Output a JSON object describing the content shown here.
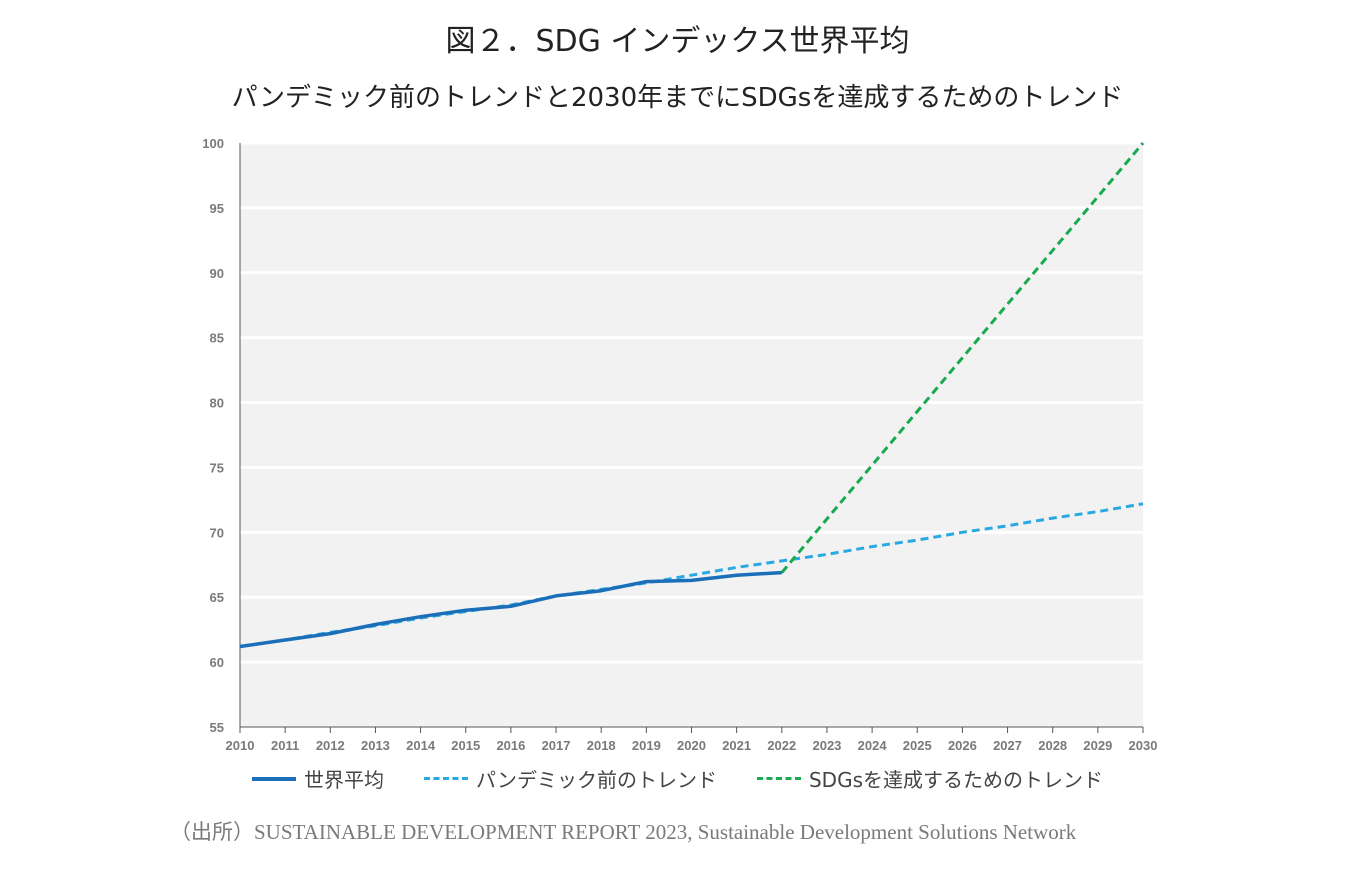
{
  "chart_data": {
    "type": "line",
    "title": "図２．SDG インデックス世界平均",
    "subtitle": "パンデミック前のトレンドと2030年までにSDGsを達成するためのトレンド",
    "xlabel": "",
    "ylabel": "",
    "ylim": [
      55,
      100
    ],
    "y_ticks": [
      "55",
      "60",
      "65",
      "70",
      "75",
      "80",
      "85",
      "90",
      "95",
      "100"
    ],
    "categories": [
      "2010",
      "2011",
      "2012",
      "2013",
      "2014",
      "2015",
      "2016",
      "2017",
      "2018",
      "2019",
      "2020",
      "2021",
      "2022",
      "2023",
      "2024",
      "2025",
      "2026",
      "2027",
      "2028",
      "2029",
      "2030"
    ],
    "grid": "horizontal",
    "legend_position": "bottom",
    "series": [
      {
        "name": "世界平均",
        "color": "#1a6fb8",
        "style": "solid",
        "x": [
          "2010",
          "2011",
          "2012",
          "2013",
          "2014",
          "2015",
          "2016",
          "2017",
          "2018",
          "2019",
          "2020",
          "2021",
          "2022"
        ],
        "values": [
          61.2,
          61.7,
          62.2,
          62.9,
          63.5,
          64.0,
          64.3,
          65.1,
          65.5,
          66.2,
          66.3,
          66.7,
          66.9
        ]
      },
      {
        "name": "パンデミック前のトレンド",
        "color": "#29a9e1",
        "style": "dashed",
        "x": [
          "2010",
          "2011",
          "2012",
          "2013",
          "2014",
          "2015",
          "2016",
          "2017",
          "2018",
          "2019",
          "2020",
          "2021",
          "2022",
          "2023",
          "2024",
          "2025",
          "2026",
          "2027",
          "2028",
          "2029",
          "2030"
        ],
        "values": [
          61.2,
          61.7,
          62.3,
          62.8,
          63.4,
          63.9,
          64.4,
          65.1,
          65.6,
          66.1,
          66.7,
          67.3,
          67.8,
          68.3,
          68.9,
          69.4,
          70.0,
          70.5,
          71.1,
          71.6,
          72.2
        ]
      },
      {
        "name": "SDGsを達成するためのトレンド",
        "color": "#19a94e",
        "style": "dashed",
        "x": [
          "2022",
          "2030"
        ],
        "values": [
          66.9,
          100
        ]
      }
    ]
  },
  "source": "（出所）SUSTAINABLE DEVELOPMENT REPORT 2023, Sustainable Development Solutions Network"
}
